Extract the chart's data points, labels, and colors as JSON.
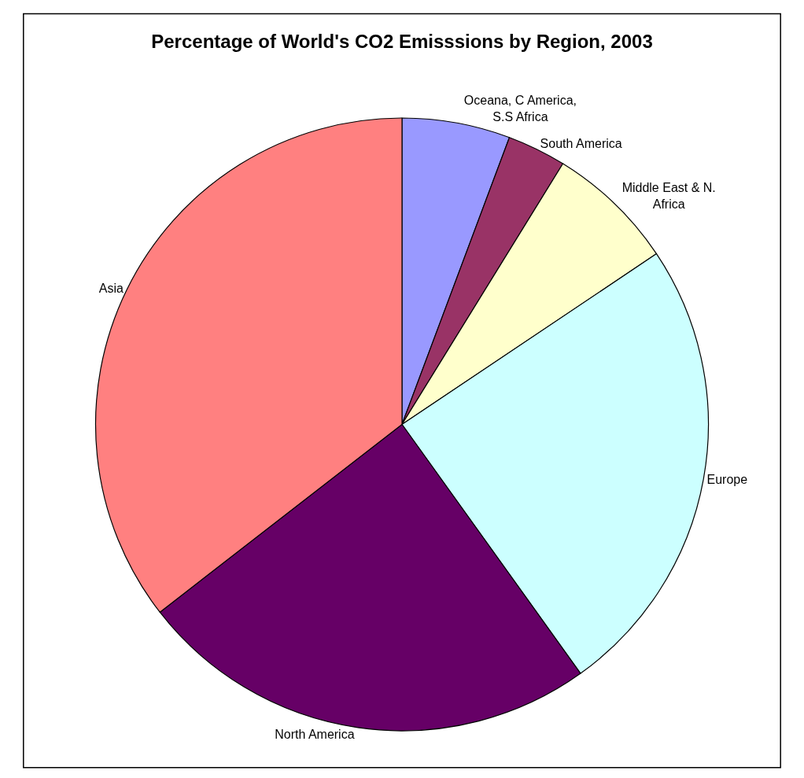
{
  "chart_data": {
    "type": "pie",
    "title": "Percentage of World's CO2 Emisssions by Region, 2003",
    "categories": [
      "Oceana, C America, S.S Africa",
      "South America",
      "Middle East & N. Africa",
      "Europe",
      "North America",
      "Asia"
    ],
    "values": [
      5.7,
      3.1,
      6.8,
      24.5,
      24.4,
      35.5
    ],
    "colors": [
      "#9999ff",
      "#993366",
      "#ffffcc",
      "#ccffff",
      "#660066",
      "#ff8080"
    ],
    "legend": false
  }
}
